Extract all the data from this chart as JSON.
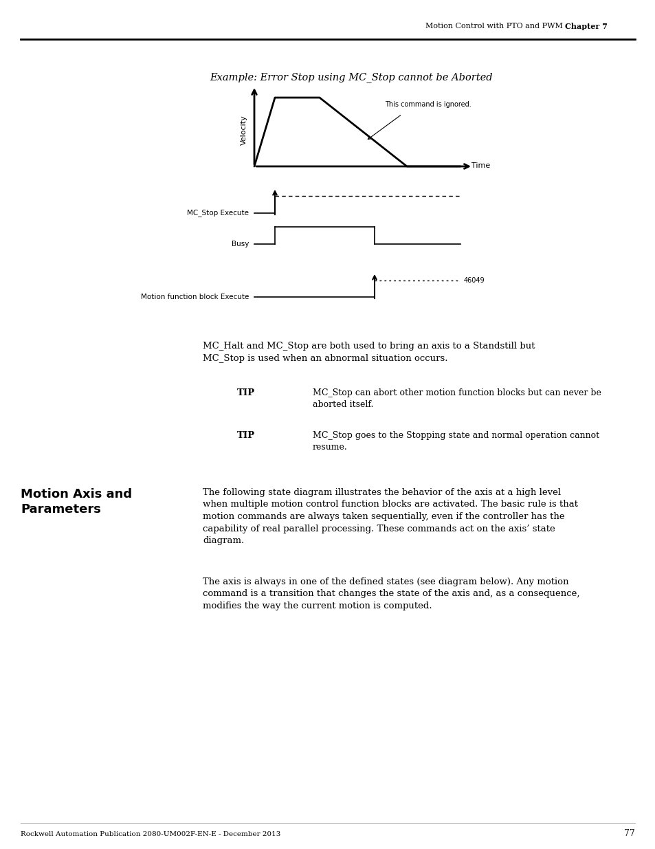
{
  "page_header_normal": "Motion Control with PTO and PWM ",
  "page_header_bold": "Chapter 7",
  "page_number": "77",
  "footer_text": "Rockwell Automation Publication 2080-UM002F-EN-E - December 2013",
  "diagram_title": "Example: Error Stop using MC_Stop cannot be Aborted",
  "diagram_note": "46049",
  "velocity_label": "Velocity",
  "time_label": "Time",
  "annotation_text": "This command is ignored.",
  "mc_stop_label": "MC_Stop Execute",
  "busy_label": "Busy",
  "motion_fb_label": "Motion function block Execute",
  "tip1_label": "TIP",
  "tip1_text": "MC_Stop can abort other motion function blocks but can never be\naborted itself.",
  "tip2_label": "TIP",
  "tip2_text": "MC_Stop goes to the Stopping state and normal operation cannot\nresume.",
  "section_title": "Motion Axis and\nParameters",
  "para1": "MC_Halt and MC_Stop are both used to bring an axis to a Standstill but\nMC_Stop is used when an abnormal situation occurs.",
  "para2": "The following state diagram illustrates the behavior of the axis at a high level\nwhen multiple motion control function blocks are activated. The basic rule is that\nmotion commands are always taken sequentially, even if the controller has the\ncapability of real parallel processing. These commands act on the axis’ state\ndiagram.",
  "para3": "The axis is always in one of the defined states (see diagram below). Any motion\ncommand is a transition that changes the state of the axis and, as a consequence,\nmodifies the way the current motion is computed.",
  "bg_color": "#ffffff",
  "text_color": "#000000"
}
